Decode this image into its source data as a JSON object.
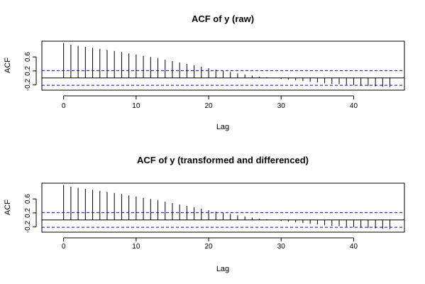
{
  "chart_data": [
    {
      "type": "bar",
      "title": "ACF of y (raw)",
      "xlabel": "Lag",
      "ylabel": "ACF",
      "xlim": [
        -3,
        47
      ],
      "ylim": [
        -0.35,
        1.05
      ],
      "xticks": [
        0,
        10,
        20,
        30,
        40
      ],
      "xtick_labels": [
        "0",
        "10",
        "20",
        "30",
        "40"
      ],
      "yticks": [
        -0.2,
        0.2,
        0.6
      ],
      "ytick_labels": [
        "-0.2",
        "0.2",
        "0.6"
      ],
      "zero_line": 0,
      "ci": 0.21,
      "ci_color": "#0000ff",
      "bar_color": "#000000",
      "lags": [
        0,
        1,
        2,
        3,
        4,
        5,
        6,
        7,
        8,
        9,
        10,
        11,
        12,
        13,
        14,
        15,
        16,
        17,
        18,
        19,
        20,
        21,
        22,
        23,
        24,
        25,
        26,
        27,
        28,
        29,
        30,
        31,
        32,
        33,
        34,
        35,
        36,
        37,
        38,
        39,
        40,
        41,
        42,
        43,
        44,
        45
      ],
      "values": [
        1.0,
        0.95,
        0.92,
        0.89,
        0.86,
        0.83,
        0.8,
        0.77,
        0.74,
        0.7,
        0.67,
        0.63,
        0.6,
        0.56,
        0.52,
        0.48,
        0.44,
        0.4,
        0.36,
        0.32,
        0.28,
        0.24,
        0.2,
        0.17,
        0.13,
        0.1,
        0.07,
        0.04,
        0.02,
        -0.01,
        -0.03,
        -0.05,
        -0.07,
        -0.09,
        -0.11,
        -0.13,
        -0.15,
        -0.17,
        -0.18,
        -0.2,
        -0.21,
        -0.22,
        -0.23,
        -0.24,
        -0.25,
        -0.26
      ]
    },
    {
      "type": "bar",
      "title": "ACF of y (transformed and differenced)",
      "xlabel": "Lag",
      "ylabel": "ACF",
      "xlim": [
        -3,
        47
      ],
      "ylim": [
        -0.35,
        1.05
      ],
      "xticks": [
        0,
        10,
        20,
        30,
        40
      ],
      "xtick_labels": [
        "0",
        "10",
        "20",
        "30",
        "40"
      ],
      "yticks": [
        -0.2,
        0.2,
        0.6
      ],
      "ytick_labels": [
        "-0.2",
        "0.2",
        "0.6"
      ],
      "zero_line": 0,
      "ci": 0.21,
      "ci_color": "#0000ff",
      "bar_color": "#000000",
      "lags": [
        0,
        1,
        2,
        3,
        4,
        5,
        6,
        7,
        8,
        9,
        10,
        11,
        12,
        13,
        14,
        15,
        16,
        17,
        18,
        19,
        20,
        21,
        22,
        23,
        24,
        25,
        26,
        27,
        28,
        29,
        30,
        31,
        32,
        33,
        34,
        35,
        36,
        37,
        38,
        39,
        40,
        41,
        42,
        43,
        44,
        45
      ],
      "values": [
        1.0,
        0.95,
        0.92,
        0.89,
        0.86,
        0.83,
        0.8,
        0.77,
        0.74,
        0.7,
        0.67,
        0.63,
        0.6,
        0.56,
        0.52,
        0.48,
        0.44,
        0.4,
        0.36,
        0.32,
        0.28,
        0.24,
        0.2,
        0.17,
        0.13,
        0.1,
        0.07,
        0.04,
        0.02,
        -0.01,
        -0.03,
        -0.05,
        -0.07,
        -0.09,
        -0.11,
        -0.13,
        -0.15,
        -0.17,
        -0.18,
        -0.2,
        -0.21,
        -0.22,
        -0.23,
        -0.24,
        -0.25,
        -0.26
      ]
    }
  ]
}
